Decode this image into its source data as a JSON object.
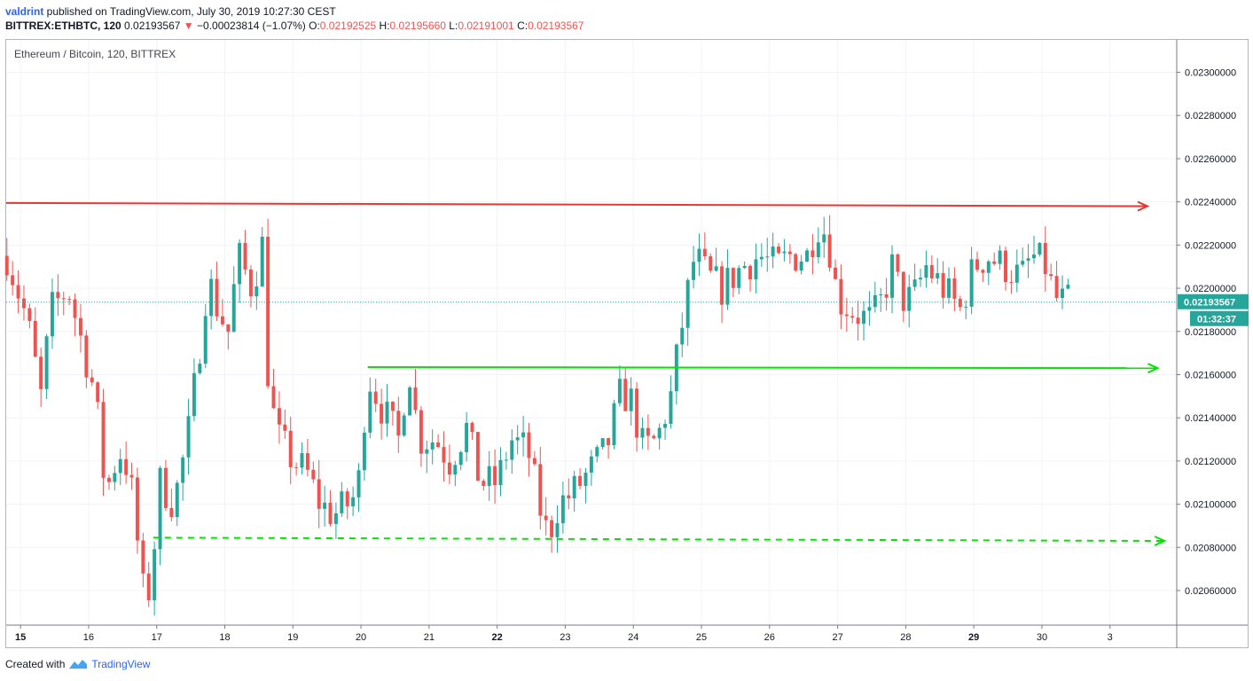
{
  "header": {
    "user": "valdrint",
    "published_text": " published on TradingView.com, July 30, 2019 10:27:30 CEST",
    "symbol": "BITTREX:ETHBTC, 120",
    "last": "0.02193567",
    "change_arrow": "▼",
    "change": "−0.00023814 (−1.07%)",
    "o_label": "O:",
    "o_value": "0.02192525",
    "h_label": "H:",
    "h_value": "0.02195660",
    "l_label": "L:",
    "l_value": "0.02191001",
    "c_label": "C:",
    "c_value": "0.02193567"
  },
  "legend": "Ethereum / Bitcoin, 120, BITTREX",
  "price_badge": "0.02193567",
  "countdown_badge": "01:32:37",
  "footer": {
    "created_with": "Created with",
    "brand": "TradingView"
  },
  "colors": {
    "up": "#26a69a",
    "down": "#ef5350",
    "resistance": "#e53935",
    "support": "#00e600",
    "price_line": "#26a69a"
  },
  "chart_data": {
    "type": "candlestick",
    "x_ticks": [
      "15",
      "16",
      "17",
      "18",
      "19",
      "20",
      "21",
      "22",
      "23",
      "24",
      "25",
      "26",
      "27",
      "28",
      "29",
      "30",
      "3"
    ],
    "x_ticks_bold": [
      "15",
      "22",
      "29"
    ],
    "y_ticks": [
      "0.02060000",
      "0.02080000",
      "0.02100000",
      "0.02120000",
      "0.02140000",
      "0.02160000",
      "0.02180000",
      "0.02200000",
      "0.02220000",
      "0.02240000",
      "0.02260000",
      "0.02280000",
      "0.02300000"
    ],
    "ylim": [
      0.02044,
      0.02315
    ],
    "xlim": [
      14.79,
      31.98
    ],
    "current_price": 0.02193567,
    "anchors": [
      [
        14.8,
        0.02215
      ],
      [
        15.1,
        0.02185
      ],
      [
        15.3,
        0.0215
      ],
      [
        15.45,
        0.0219
      ],
      [
        15.7,
        0.022
      ],
      [
        15.9,
        0.02175
      ],
      [
        16.1,
        0.0215
      ],
      [
        16.25,
        0.02105
      ],
      [
        16.45,
        0.02125
      ],
      [
        16.6,
        0.02115
      ],
      [
        16.8,
        0.0206
      ],
      [
        16.9,
        0.0206
      ],
      [
        17.05,
        0.0211
      ],
      [
        17.25,
        0.021
      ],
      [
        17.45,
        0.0213
      ],
      [
        17.6,
        0.02165
      ],
      [
        17.75,
        0.02205
      ],
      [
        17.9,
        0.0219
      ],
      [
        18.05,
        0.0218
      ],
      [
        18.2,
        0.02215
      ],
      [
        18.4,
        0.022
      ],
      [
        18.55,
        0.0222
      ],
      [
        18.65,
        0.0215
      ],
      [
        18.8,
        0.0213
      ],
      [
        19.0,
        0.0212
      ],
      [
        19.2,
        0.02115
      ],
      [
        19.4,
        0.021
      ],
      [
        19.6,
        0.02095
      ],
      [
        19.8,
        0.021
      ],
      [
        19.95,
        0.02105
      ],
      [
        20.1,
        0.0216
      ],
      [
        20.3,
        0.02145
      ],
      [
        20.55,
        0.0213
      ],
      [
        20.7,
        0.02165
      ],
      [
        20.85,
        0.0213
      ],
      [
        21.1,
        0.0213
      ],
      [
        21.3,
        0.0212
      ],
      [
        21.55,
        0.02135
      ],
      [
        21.75,
        0.0211
      ],
      [
        22.0,
        0.0211
      ],
      [
        22.2,
        0.0213
      ],
      [
        22.45,
        0.02125
      ],
      [
        22.65,
        0.02095
      ],
      [
        22.75,
        0.02085
      ],
      [
        22.9,
        0.021
      ],
      [
        23.1,
        0.02105
      ],
      [
        23.35,
        0.02115
      ],
      [
        23.6,
        0.02125
      ],
      [
        23.8,
        0.0215
      ],
      [
        23.95,
        0.0215
      ],
      [
        24.15,
        0.02125
      ],
      [
        24.35,
        0.0213
      ],
      [
        24.55,
        0.0215
      ],
      [
        24.75,
        0.0219
      ],
      [
        24.9,
        0.02215
      ],
      [
        25.1,
        0.02205
      ],
      [
        25.3,
        0.022
      ],
      [
        25.6,
        0.0221
      ],
      [
        25.85,
        0.02215
      ],
      [
        26.1,
        0.0221
      ],
      [
        26.3,
        0.02215
      ],
      [
        26.55,
        0.02215
      ],
      [
        26.7,
        0.0223
      ],
      [
        26.85,
        0.02225
      ],
      [
        27.0,
        0.02195
      ],
      [
        27.2,
        0.0219
      ],
      [
        27.45,
        0.02185
      ],
      [
        27.6,
        0.0219
      ],
      [
        27.8,
        0.0221
      ],
      [
        27.95,
        0.02195
      ],
      [
        28.1,
        0.02195
      ],
      [
        28.3,
        0.0221
      ],
      [
        28.55,
        0.022
      ],
      [
        28.8,
        0.0219
      ],
      [
        29.0,
        0.0221
      ],
      [
        29.2,
        0.02215
      ],
      [
        29.45,
        0.0221
      ],
      [
        29.7,
        0.02205
      ],
      [
        29.85,
        0.02215
      ],
      [
        30.05,
        0.0221
      ],
      [
        30.2,
        0.02195
      ],
      [
        30.45,
        0.02193
      ]
    ],
    "lines": [
      {
        "kind": "resistance",
        "style": "solid",
        "color": "#e53935",
        "x": [
          14.79,
          31.55
        ],
        "y": [
          0.022395,
          0.02238
        ]
      },
      {
        "kind": "support",
        "style": "solid",
        "color": "#00e600",
        "x": [
          20.1,
          31.7
        ],
        "y": [
          0.021635,
          0.02163
        ]
      },
      {
        "kind": "support",
        "style": "dashed",
        "color": "#00e600",
        "x": [
          16.95,
          31.8
        ],
        "y": [
          0.020845,
          0.02083
        ]
      }
    ]
  }
}
